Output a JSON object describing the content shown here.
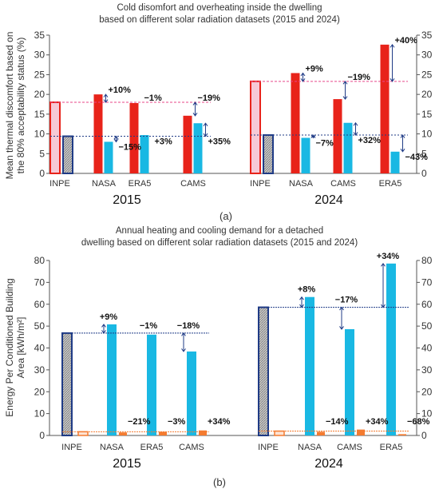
{
  "colors": {
    "overheating": "#e8231a",
    "cold": "#19b8e3",
    "heating": "#f47b30",
    "inpe_hatch_fill": "#b8b8b8",
    "inpe_pink": "#f6c9d6",
    "navy": "#1f3b86",
    "pink_dashed": "#e8478a"
  },
  "chart_data": [
    {
      "type": "bar",
      "panel_label": "(a)",
      "title_lines": [
        "Cold disomfort and overheating inside the dwelling",
        "based on different solar radiation datasets (2015 and 2024)"
      ],
      "ylabel_lines": [
        "Mean thermal discomfort based on",
        "the 80% acceptability status (%)"
      ],
      "ylim": [
        0,
        35
      ],
      "yticks": [
        "0",
        "5",
        "10",
        "15",
        "20",
        "25",
        "30",
        "35"
      ],
      "right_axis": true,
      "grid": false,
      "groups": [
        {
          "year": "2015",
          "categories": [
            "INPE",
            "NASA",
            "ERA5",
            "CAMS"
          ],
          "series": [
            {
              "values": [
                18,
                20,
                17.8,
                14.6
              ]
            },
            {
              "values": [
                9.4,
                8.0,
                9.7,
                12.7
              ]
            }
          ],
          "annotations": [
            {
              "category": "NASA",
              "series": 0,
              "text": "+10%"
            },
            {
              "category": "ERA5",
              "series": 0,
              "text": "−1%"
            },
            {
              "category": "CAMS",
              "series": 0,
              "text": "−19%"
            },
            {
              "category": "NASA",
              "series": 1,
              "text": "−15%"
            },
            {
              "category": "ERA5",
              "series": 1,
              "text": "+3%"
            },
            {
              "category": "CAMS",
              "series": 1,
              "text": "+35%"
            }
          ]
        },
        {
          "year": "2024",
          "categories": [
            "INPE",
            "NASA",
            "CAMS",
            "ERA5"
          ],
          "series": [
            {
              "values": [
                23.3,
                25.4,
                18.8,
                32.6
              ]
            },
            {
              "values": [
                9.7,
                9.0,
                12.8,
                5.5
              ]
            }
          ],
          "annotations": [
            {
              "category": "NASA",
              "series": 0,
              "text": "+9%"
            },
            {
              "category": "CAMS",
              "series": 0,
              "text": "−19%"
            },
            {
              "category": "ERA5",
              "series": 0,
              "text": "+40%"
            },
            {
              "category": "NASA",
              "series": 1,
              "text": "−7%"
            },
            {
              "category": "CAMS",
              "series": 1,
              "text": "+32%"
            },
            {
              "category": "ERA5",
              "series": 1,
              "text": "−43%"
            }
          ]
        }
      ]
    },
    {
      "type": "bar",
      "panel_label": "(b)",
      "title_lines": [
        "Annual heating and cooling demand for a detached",
        "dwelling based on different solar radiation datasets (2015 and 2024)"
      ],
      "ylabel_lines": [
        "Energy Per Conditioned Building",
        "Area [kWh/m²]"
      ],
      "ylim": [
        0,
        80
      ],
      "yticks": [
        "0",
        "10",
        "20",
        "30",
        "40",
        "50",
        "60",
        "70",
        "80"
      ],
      "right_axis": true,
      "grid": false,
      "groups": [
        {
          "year": "2015",
          "categories": [
            "INPE",
            "NASA",
            "ERA5",
            "CAMS"
          ],
          "series": [
            {
              "values": [
                46.8,
                50.8,
                46.1,
                38.4
              ]
            },
            {
              "values": [
                1.7,
                1.4,
                1.7,
                2.3
              ]
            }
          ],
          "annotations": [
            {
              "category": "NASA",
              "series": 0,
              "text": "+9%"
            },
            {
              "category": "ERA5",
              "series": 0,
              "text": "−1%"
            },
            {
              "category": "CAMS",
              "series": 0,
              "text": "−18%"
            },
            {
              "category": "NASA",
              "series": 1,
              "text": "−21%"
            },
            {
              "category": "ERA5",
              "series": 1,
              "text": "−3%"
            },
            {
              "category": "CAMS",
              "series": 1,
              "text": "+34%"
            }
          ]
        },
        {
          "year": "2024",
          "categories": [
            "INPE",
            "NASA",
            "CAMS",
            "ERA5"
          ],
          "series": [
            {
              "values": [
                58.6,
                63.3,
                48.6,
                78.6
              ]
            },
            {
              "values": [
                2.0,
                1.7,
                2.7,
                0.6
              ]
            }
          ],
          "annotations": [
            {
              "category": "NASA",
              "series": 0,
              "text": "+8%"
            },
            {
              "category": "CAMS",
              "series": 0,
              "text": "−17%"
            },
            {
              "category": "ERA5",
              "series": 0,
              "text": "+34%"
            },
            {
              "category": "NASA",
              "series": 1,
              "text": "−14%"
            },
            {
              "category": "CAMS",
              "series": 1,
              "text": "+34%"
            },
            {
              "category": "ERA5",
              "series": 1,
              "text": "−68%"
            }
          ]
        }
      ]
    }
  ]
}
